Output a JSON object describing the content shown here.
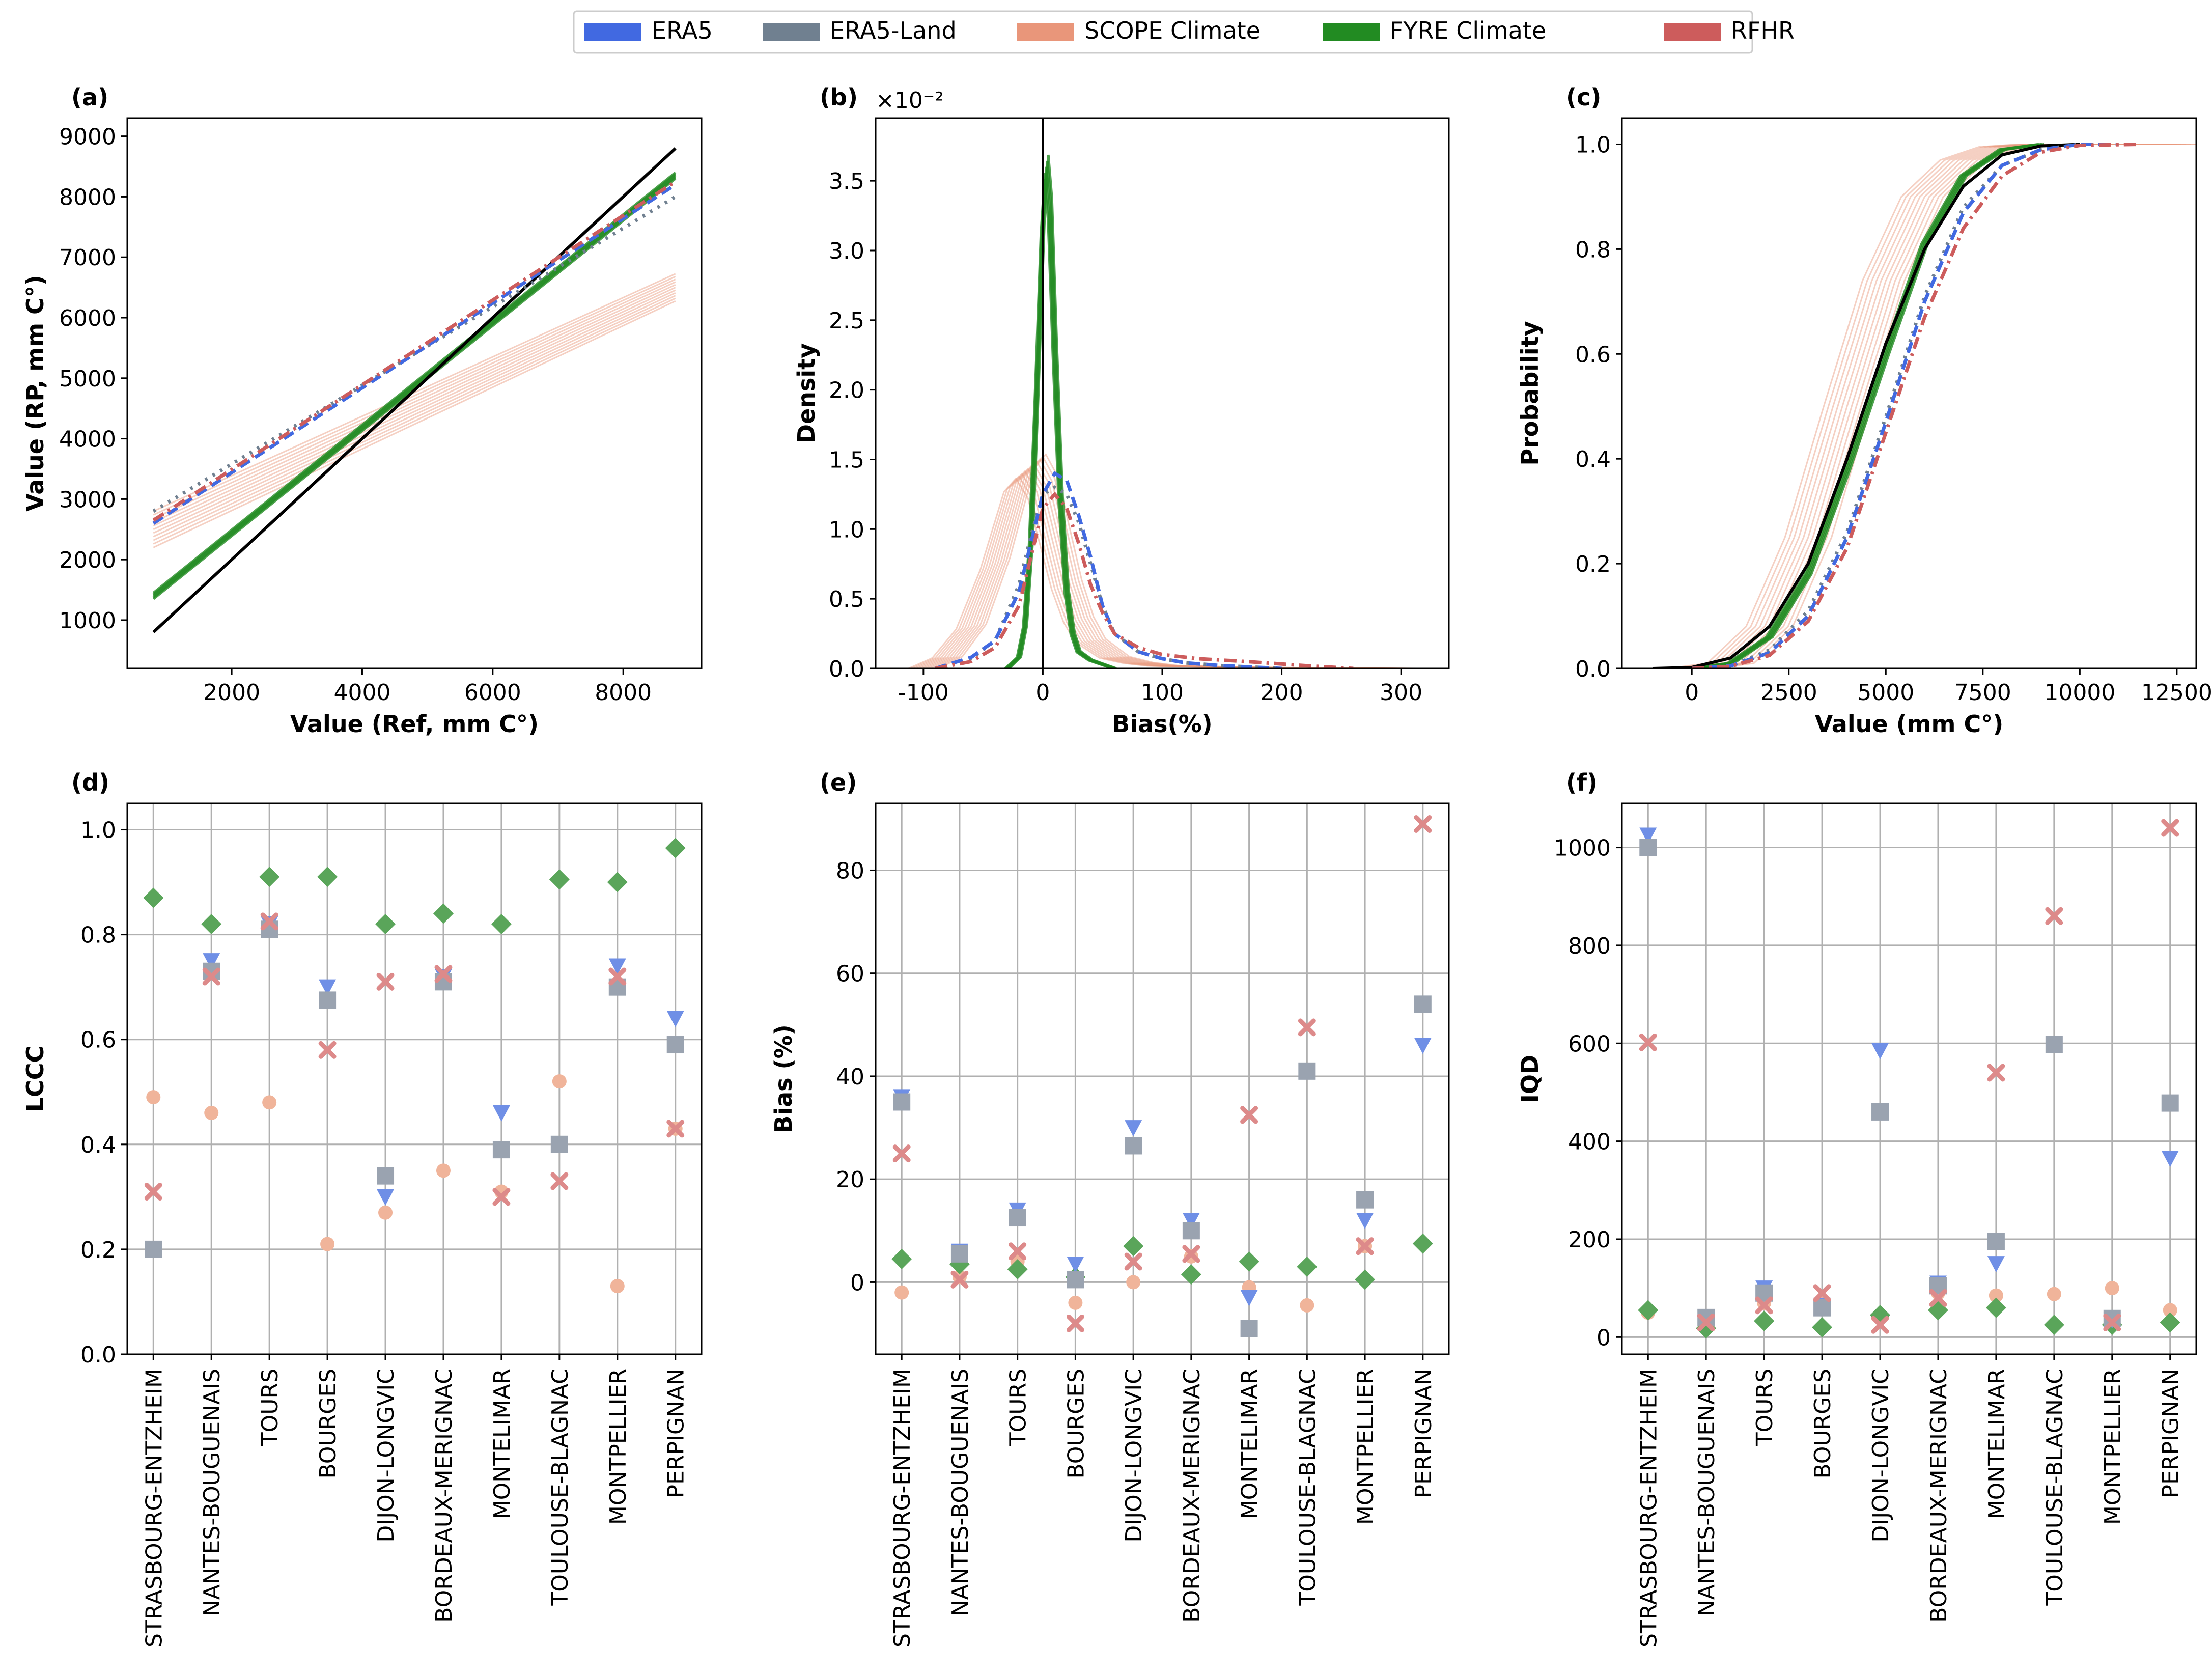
{
  "legend": [
    {
      "name": "ERA5",
      "color": "#4169e1"
    },
    {
      "name": "ERA5-Land",
      "color": "#708090"
    },
    {
      "name": "SCOPE Climate",
      "color": "#e9967a"
    },
    {
      "name": "FYRE Climate",
      "color": "#228b22"
    },
    {
      "name": "RFHR",
      "color": "#cd5c5c"
    }
  ],
  "chart_data": [
    {
      "panel": "(a)",
      "type": "line",
      "xlabel": "Value (Ref, mm C°)",
      "ylabel": "Value (RP, mm C°)",
      "xlim": [
        400,
        9200
      ],
      "ylim": [
        200,
        9300
      ],
      "xticks": [
        2000,
        4000,
        6000,
        8000
      ],
      "yticks": [
        1000,
        2000,
        3000,
        4000,
        5000,
        6000,
        7000,
        8000,
        9000
      ],
      "series": [
        {
          "name": "Reference 1:1",
          "color": "#000000",
          "style": "solid",
          "x": [
            800,
            8800
          ],
          "y": [
            800,
            8800
          ]
        },
        {
          "name": "ERA5",
          "color": "#4169e1",
          "style": "dashed",
          "x": [
            800,
            8800
          ],
          "y": [
            2600,
            8200
          ]
        },
        {
          "name": "ERA5-Land",
          "color": "#708090",
          "style": "dotted",
          "x": [
            800,
            8800
          ],
          "y": [
            2800,
            8000
          ]
        },
        {
          "name": "RFHR",
          "color": "#cd5c5c",
          "style": "dashdot",
          "x": [
            800,
            8800
          ],
          "y": [
            2650,
            8250
          ]
        },
        {
          "name": "FYRE Climate",
          "color": "#228b22",
          "style": "solid",
          "x": [
            800,
            8800
          ],
          "y": [
            1400,
            8350
          ]
        },
        {
          "name": "SCOPE Climate",
          "color": "#e9967a",
          "style": "solid",
          "x": [
            800,
            8800
          ],
          "y": [
            2500,
            6500
          ]
        }
      ]
    },
    {
      "panel": "(b)",
      "type": "line",
      "xlabel": "Bias(%)",
      "ylabel": "Density",
      "offset_text": "×10⁻²",
      "xlim": [
        -140,
        340
      ],
      "ylim": [
        0,
        3.95
      ],
      "xticks": [
        -100,
        0,
        100,
        200,
        300
      ],
      "yticks": [
        0.0,
        0.5,
        1.0,
        1.5,
        2.0,
        2.5,
        3.0,
        3.5
      ],
      "series": [
        {
          "name": "ERA5",
          "color": "#4169e1",
          "style": "dashed",
          "x": [
            -90,
            -60,
            -40,
            -20,
            -10,
            0,
            10,
            20,
            30,
            40,
            50,
            60,
            80,
            100,
            120,
            150,
            200
          ],
          "y": [
            0,
            0.08,
            0.2,
            0.55,
            0.9,
            1.25,
            1.4,
            1.35,
            1.1,
            0.8,
            0.45,
            0.25,
            0.12,
            0.07,
            0.04,
            0.02,
            0
          ]
        },
        {
          "name": "ERA5-Land",
          "color": "#708090",
          "style": "dotted",
          "x": [
            -90,
            -60,
            -40,
            -20,
            -10,
            0,
            10,
            20,
            30,
            40,
            50,
            60,
            80,
            100,
            120,
            150,
            200
          ],
          "y": [
            0,
            0.07,
            0.2,
            0.6,
            0.95,
            1.25,
            1.3,
            1.25,
            1.05,
            0.75,
            0.45,
            0.25,
            0.12,
            0.07,
            0.04,
            0.02,
            0
          ]
        },
        {
          "name": "RFHR",
          "color": "#cd5c5c",
          "style": "dashdot",
          "x": [
            -90,
            -60,
            -40,
            -20,
            -10,
            0,
            10,
            20,
            30,
            40,
            50,
            60,
            80,
            100,
            130,
            170,
            220,
            260
          ],
          "y": [
            0,
            0.05,
            0.15,
            0.45,
            0.8,
            1.15,
            1.25,
            1.15,
            0.9,
            0.6,
            0.4,
            0.25,
            0.15,
            0.1,
            0.07,
            0.05,
            0.02,
            0
          ]
        },
        {
          "name": "FYRE Climate",
          "color": "#228b22",
          "style": "solid",
          "x": [
            -30,
            -20,
            -15,
            -10,
            -5,
            0,
            3,
            6,
            10,
            15,
            20,
            25,
            30,
            40,
            50,
            60
          ],
          "y": [
            0,
            0.08,
            0.3,
            0.9,
            2.0,
            3.2,
            3.6,
            3.3,
            2.3,
            1.2,
            0.55,
            0.25,
            0.12,
            0.06,
            0.03,
            0
          ]
        },
        {
          "name": "SCOPE Climate",
          "color": "#e9967a",
          "style": "solid",
          "x": [
            -100,
            -80,
            -60,
            -40,
            -30,
            -20,
            -10,
            0,
            10,
            20,
            30,
            40,
            60,
            80,
            100,
            150,
            200,
            300
          ],
          "y": [
            0,
            0.08,
            0.3,
            0.75,
            1.05,
            1.35,
            1.45,
            1.3,
            0.95,
            0.6,
            0.35,
            0.2,
            0.08,
            0.04,
            0.02,
            0.01,
            0.005,
            0
          ]
        }
      ]
    },
    {
      "panel": "(c)",
      "type": "line",
      "xlabel": "Value (mm C°)",
      "ylabel": "Probability",
      "xlim": [
        -1800,
        13000
      ],
      "ylim": [
        0,
        1.05
      ],
      "xticks": [
        0,
        2500,
        5000,
        7500,
        10000,
        12500
      ],
      "yticks": [
        0.0,
        0.2,
        0.4,
        0.6,
        0.8,
        1.0
      ],
      "series": [
        {
          "name": "Reference",
          "color": "#000000",
          "style": "solid",
          "x": [
            -1000,
            0,
            1000,
            2000,
            3000,
            4000,
            5000,
            6000,
            7000,
            8000,
            9000,
            10000
          ],
          "y": [
            0,
            0.002,
            0.02,
            0.08,
            0.2,
            0.4,
            0.62,
            0.8,
            0.92,
            0.98,
            0.997,
            1.0
          ]
        },
        {
          "name": "ERA5",
          "color": "#4169e1",
          "style": "dashed",
          "x": [
            0,
            1000,
            2000,
            3000,
            4000,
            5000,
            6000,
            7000,
            8000,
            9000,
            10000,
            11000
          ],
          "y": [
            0,
            0.005,
            0.03,
            0.1,
            0.25,
            0.47,
            0.7,
            0.87,
            0.96,
            0.99,
            1.0,
            1.0
          ]
        },
        {
          "name": "ERA5-Land",
          "color": "#708090",
          "style": "dotted",
          "x": [
            0,
            1000,
            2000,
            3000,
            4000,
            5000,
            6000,
            7000,
            8000,
            9000,
            10000,
            11000
          ],
          "y": [
            0,
            0.005,
            0.035,
            0.11,
            0.26,
            0.48,
            0.71,
            0.88,
            0.96,
            0.99,
            1.0,
            1.0
          ]
        },
        {
          "name": "RFHR",
          "color": "#cd5c5c",
          "style": "dashdot",
          "x": [
            0,
            1000,
            2000,
            3000,
            4000,
            5000,
            6000,
            7000,
            8000,
            9000,
            10000,
            11500
          ],
          "y": [
            0,
            0.004,
            0.025,
            0.09,
            0.23,
            0.45,
            0.67,
            0.84,
            0.94,
            0.985,
            0.998,
            1.0
          ]
        },
        {
          "name": "FYRE Climate",
          "color": "#228b22",
          "style": "solid",
          "x": [
            0,
            1000,
            2000,
            3000,
            4000,
            5000,
            6000,
            7000,
            8000,
            9000
          ],
          "y": [
            0,
            0.01,
            0.06,
            0.18,
            0.38,
            0.6,
            0.81,
            0.94,
            0.99,
            1.0
          ]
        },
        {
          "name": "SCOPE Climate",
          "color": "#e9967a",
          "style": "solid",
          "x": [
            0,
            1000,
            2000,
            3000,
            4000,
            5000,
            6000,
            7000,
            8000,
            9000,
            10000,
            12500
          ],
          "y": [
            0,
            0.01,
            0.08,
            0.25,
            0.5,
            0.74,
            0.9,
            0.97,
            0.995,
            1.0,
            1.0,
            1.0
          ]
        }
      ]
    },
    {
      "panel": "(d)",
      "type": "scatter",
      "ylabel": "LCCC",
      "ylim": [
        0.0,
        1.05
      ],
      "yticks": [
        0.0,
        0.2,
        0.4,
        0.6,
        0.8,
        1.0
      ],
      "categories": [
        "STRASBOURG-ENTZHEIM",
        "NANTES-BOUGUENAIS",
        "TOURS",
        "BOURGES",
        "DIJON-LONGVIC",
        "BORDEAUX-MERIGNAC",
        "MONTELIMAR",
        "TOULOUSE-BLAGNAC",
        "MONTPELLIER",
        "PERPIGNAN"
      ],
      "series": [
        {
          "name": "ERA5",
          "marker": "triangle",
          "values": [
            0.2,
            0.75,
            0.82,
            0.7,
            0.3,
            0.72,
            0.46,
            0.4,
            0.74,
            0.64
          ]
        },
        {
          "name": "ERA5-Land",
          "marker": "square",
          "values": [
            0.2,
            0.73,
            0.81,
            0.675,
            0.34,
            0.71,
            0.39,
            0.4,
            0.7,
            0.59
          ]
        },
        {
          "name": "SCOPE Climate",
          "marker": "circle",
          "values": [
            0.49,
            0.46,
            0.48,
            0.21,
            0.27,
            0.35,
            0.31,
            0.52,
            0.13,
            0.43
          ]
        },
        {
          "name": "FYRE Climate",
          "marker": "diamond",
          "values": [
            0.87,
            0.82,
            0.91,
            0.91,
            0.82,
            0.84,
            0.82,
            0.905,
            0.9,
            0.965
          ]
        },
        {
          "name": "RFHR",
          "marker": "x",
          "values": [
            0.31,
            0.72,
            0.825,
            0.58,
            0.71,
            0.725,
            0.3,
            0.33,
            0.72,
            0.43
          ]
        }
      ]
    },
    {
      "panel": "(e)",
      "type": "scatter",
      "ylabel": "Bias (%)",
      "ylim": [
        -14,
        93
      ],
      "yticks": [
        0,
        20,
        40,
        60,
        80
      ],
      "categories": [
        "STRASBOURG-ENTZHEIM",
        "NANTES-BOUGUENAIS",
        "TOURS",
        "BOURGES",
        "DIJON-LONGVIC",
        "BORDEAUX-MERIGNAC",
        "MONTELIMAR",
        "TOULOUSE-BLAGNAC",
        "MONTPELLIER",
        "PERPIGNAN"
      ],
      "series": [
        {
          "name": "ERA5",
          "marker": "triangle",
          "values": [
            36,
            6,
            14,
            3.5,
            30,
            12,
            -3,
            41,
            12,
            46
          ]
        },
        {
          "name": "ERA5-Land",
          "marker": "square",
          "values": [
            35,
            5.5,
            12.5,
            0.5,
            26.5,
            10,
            -9,
            41,
            16,
            54
          ]
        },
        {
          "name": "SCOPE Climate",
          "marker": "circle",
          "values": [
            -2,
            1,
            4,
            -4,
            0,
            5,
            -1,
            -4.5,
            7,
            7.5
          ]
        },
        {
          "name": "FYRE Climate",
          "marker": "diamond",
          "values": [
            4.5,
            3.5,
            2.5,
            1,
            7,
            1.5,
            4,
            3,
            0.5,
            7.5
          ]
        },
        {
          "name": "RFHR",
          "marker": "x",
          "values": [
            25,
            0.5,
            6,
            -8,
            4,
            5.5,
            32.5,
            49.5,
            7,
            89
          ]
        }
      ]
    },
    {
      "panel": "(f)",
      "type": "scatter",
      "ylabel": "IQD",
      "ylim": [
        -35,
        1090
      ],
      "yticks": [
        0,
        200,
        400,
        600,
        800,
        1000
      ],
      "categories": [
        "STRASBOURG-ENTZHEIM",
        "NANTES-BOUGUENAIS",
        "TOURS",
        "BOURGES",
        "DIJON-LONGVIC",
        "BORDEAUX-MERIGNAC",
        "MONTELIMAR",
        "TOULOUSE-BLAGNAC",
        "MONTPELLIER",
        "PERPIGNAN"
      ],
      "series": [
        {
          "name": "ERA5",
          "marker": "triangle",
          "values": [
            1025,
            40,
            100,
            65,
            585,
            110,
            150,
            600,
            35,
            365
          ]
        },
        {
          "name": "ERA5-Land",
          "marker": "square",
          "values": [
            1000,
            40,
            90,
            60,
            460,
            105,
            195,
            598,
            38,
            478
          ]
        },
        {
          "name": "SCOPE Climate",
          "marker": "circle",
          "values": [
            50,
            30,
            70,
            75,
            45,
            90,
            85,
            88,
            100,
            55
          ]
        },
        {
          "name": "FYRE Climate",
          "marker": "diamond",
          "values": [
            55,
            18,
            33,
            20,
            45,
            55,
            60,
            25,
            25,
            30
          ]
        },
        {
          "name": "RFHR",
          "marker": "x",
          "values": [
            602,
            30,
            65,
            90,
            25,
            80,
            540,
            860,
            30,
            1040
          ]
        }
      ]
    }
  ]
}
